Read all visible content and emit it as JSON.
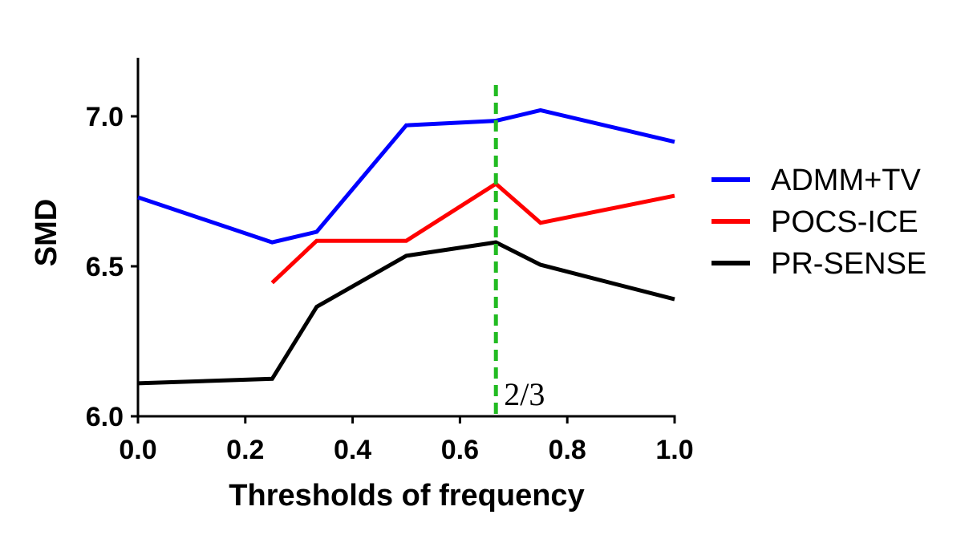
{
  "chart_data": {
    "type": "line",
    "title": "",
    "xlabel": "Thresholds of frequency",
    "ylabel": "SMD",
    "xlim": [
      0.0,
      1.0
    ],
    "ylim": [
      6.0,
      7.2
    ],
    "xticks": [
      0.0,
      0.2,
      0.4,
      0.6,
      0.8,
      1.0
    ],
    "xtick_labels": [
      "0.0",
      "0.2",
      "0.4",
      "0.6",
      "0.8",
      "1.0"
    ],
    "yticks": [
      6.0,
      6.5,
      7.0
    ],
    "ytick_labels": [
      "6.0",
      "6.5",
      "7.0"
    ],
    "grid": false,
    "legend_position": "right",
    "series": [
      {
        "name": "ADMM+TV",
        "color": "#0000ff",
        "x": [
          0.0,
          0.25,
          0.333,
          0.5,
          0.667,
          0.75,
          1.0
        ],
        "y": [
          6.73,
          6.58,
          6.615,
          6.97,
          6.985,
          7.02,
          6.915
        ]
      },
      {
        "name": "POCS-ICE",
        "color": "#ff0000",
        "x": [
          0.25,
          0.333,
          0.5,
          0.667,
          0.75,
          1.0
        ],
        "y": [
          6.445,
          6.585,
          6.585,
          6.775,
          6.645,
          6.735
        ]
      },
      {
        "name": "PR-SENSE",
        "color": "#000000",
        "x": [
          0.0,
          0.25,
          0.333,
          0.5,
          0.667,
          0.75,
          1.0
        ],
        "y": [
          6.11,
          6.125,
          6.365,
          6.535,
          6.58,
          6.505,
          6.39
        ]
      }
    ],
    "annotations": [
      {
        "type": "vertical_line",
        "x": 0.667,
        "color": "#22bb22",
        "style": "dashed",
        "label": "2/3"
      }
    ]
  }
}
